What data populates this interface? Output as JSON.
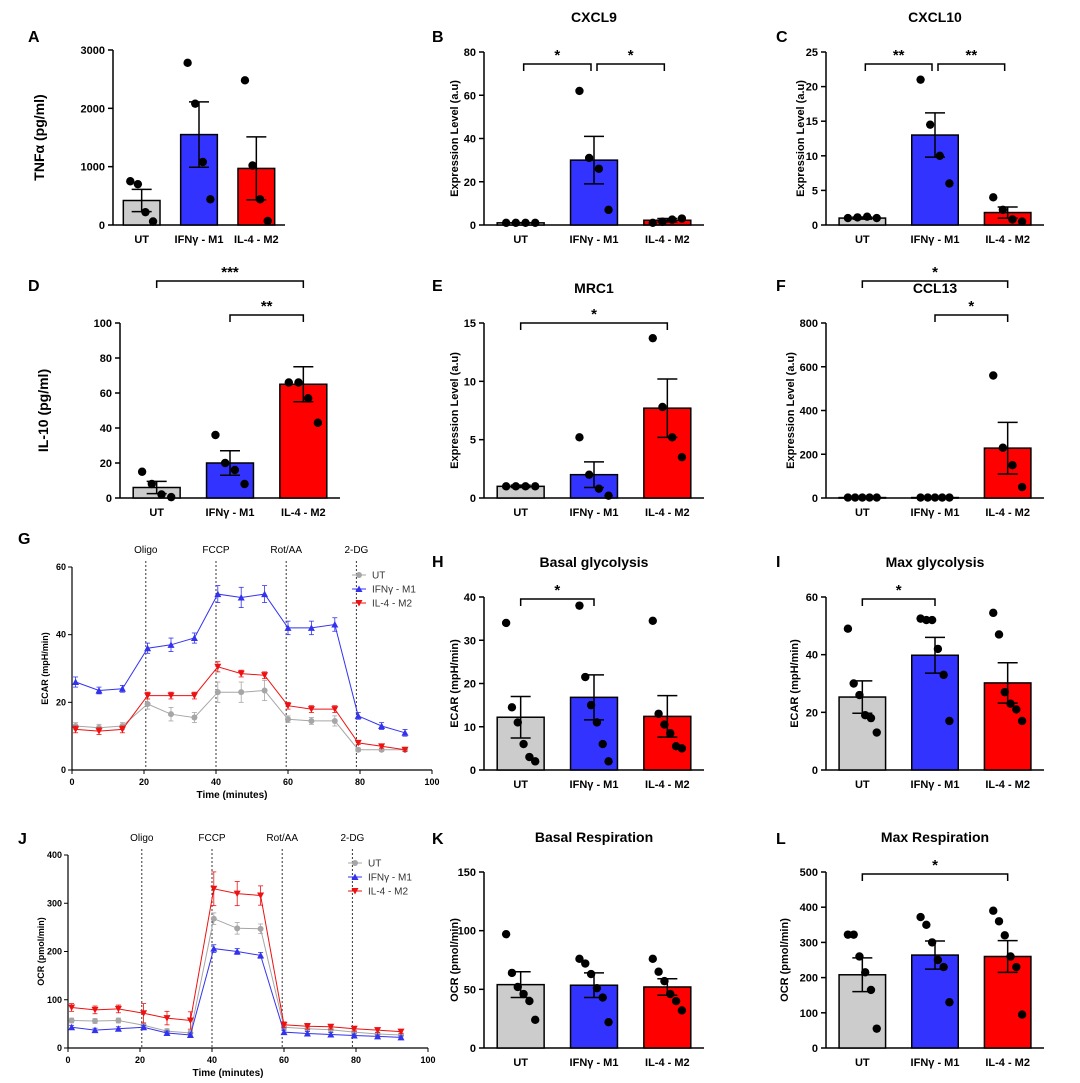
{
  "colors": {
    "UT": "#cccccc",
    "M1": "#3333ff",
    "M2": "#ff0000",
    "point": "#000000",
    "lineUT": "#a6a6a6",
    "lineM1": "#3333ee",
    "lineM2": "#ee1111"
  },
  "groups": [
    "UT",
    "IFNγ - M1",
    "IL-4 - M2"
  ],
  "chart_data": [
    {
      "id": "A",
      "type": "bar",
      "panel_letter": "A",
      "title": "",
      "ylabel": "TNFα (pg/ml)",
      "ylim": [
        0,
        3000
      ],
      "yticks": [
        0,
        1000,
        2000,
        3000
      ],
      "categories": [
        "UT",
        "IFNγ - M1",
        "IL-4 - M2"
      ],
      "values": [
        420,
        1550,
        970
      ],
      "errors": [
        190,
        560,
        540
      ],
      "points": [
        [
          750,
          700,
          220,
          60
        ],
        [
          2780,
          2080,
          1080,
          440
        ],
        [
          2480,
          1020,
          440,
          70
        ]
      ],
      "significance": []
    },
    {
      "id": "B",
      "type": "bar",
      "panel_letter": "B",
      "title": "CXCL9",
      "ylabel": "Expression Level (a.u)",
      "ylim": [
        0,
        80
      ],
      "yticks": [
        0,
        20,
        40,
        60,
        80
      ],
      "categories": [
        "UT",
        "IFNγ - M1",
        "IL-4 - M2"
      ],
      "values": [
        1,
        30,
        2.2
      ],
      "errors": [
        0.1,
        11,
        0.8
      ],
      "points": [
        [
          1,
          1,
          1,
          1
        ],
        [
          62,
          31,
          26,
          7
        ],
        [
          1,
          1.5,
          2.5,
          3
        ]
      ],
      "significance": [
        {
          "from": 0,
          "to": 1,
          "label": "*",
          "level": 1
        },
        {
          "from": 1,
          "to": 2,
          "label": "*",
          "level": 1
        }
      ]
    },
    {
      "id": "C",
      "type": "bar",
      "panel_letter": "C",
      "title": "CXCL10",
      "ylabel": "Expression Level (a.u)",
      "ylim": [
        0,
        25
      ],
      "yticks": [
        0,
        5,
        10,
        15,
        20,
        25
      ],
      "categories": [
        "UT",
        "IFNγ - M1",
        "IL-4 - M2"
      ],
      "values": [
        1,
        13,
        1.8
      ],
      "errors": [
        0.15,
        3.2,
        0.8
      ],
      "points": [
        [
          1,
          1.1,
          1.2,
          1
        ],
        [
          21,
          14.5,
          10,
          6
        ],
        [
          4,
          2.2,
          0.8,
          0.5
        ]
      ],
      "significance": [
        {
          "from": 0,
          "to": 1,
          "label": "**",
          "level": 1
        },
        {
          "from": 1,
          "to": 2,
          "label": "**",
          "level": 1
        }
      ]
    },
    {
      "id": "D",
      "type": "bar",
      "panel_letter": "D",
      "title": "",
      "ylabel": "IL-10 (pg/ml)",
      "ylim": [
        0,
        100
      ],
      "yticks": [
        0,
        20,
        40,
        60,
        80,
        100
      ],
      "categories": [
        "UT",
        "IFNγ - M1",
        "IL-4 - M2"
      ],
      "values": [
        6,
        20,
        65
      ],
      "errors": [
        3.5,
        7,
        10
      ],
      "points": [
        [
          15,
          8,
          2,
          0.5
        ],
        [
          36,
          20,
          16,
          8
        ],
        [
          66,
          66,
          57,
          43
        ]
      ],
      "significance": [
        {
          "from": 1,
          "to": 2,
          "label": "**",
          "level": 1
        },
        {
          "from": 0,
          "to": 2,
          "label": "***",
          "level": 2
        }
      ]
    },
    {
      "id": "E",
      "type": "bar",
      "panel_letter": "E",
      "title": "MRC1",
      "ylabel": "Expression Level (a.u)",
      "ylim": [
        0,
        15
      ],
      "yticks": [
        0,
        5,
        10,
        15
      ],
      "categories": [
        "UT",
        "IFNγ - M1",
        "IL-4 - M2"
      ],
      "values": [
        1,
        2,
        7.7
      ],
      "errors": [
        0.1,
        1.1,
        2.5
      ],
      "points": [
        [
          1,
          1,
          1,
          1
        ],
        [
          5.2,
          2,
          0.8,
          0.2
        ],
        [
          13.7,
          7.8,
          5.2,
          3.5
        ]
      ],
      "significance": [
        {
          "from": 0,
          "to": 2,
          "label": "*",
          "level": 1
        }
      ]
    },
    {
      "id": "F",
      "type": "bar",
      "panel_letter": "F",
      "title": "CCL13",
      "ylabel": "Expression Level (a.u)",
      "ylim": [
        0,
        800
      ],
      "yticks": [
        0,
        200,
        400,
        600,
        800
      ],
      "categories": [
        "UT",
        "IFNγ - M1",
        "IL-4 - M2"
      ],
      "values": [
        2,
        2,
        228
      ],
      "errors": [
        1,
        1,
        118
      ],
      "points": [
        [
          2,
          2,
          2,
          2,
          2
        ],
        [
          2,
          2,
          2,
          2,
          2
        ],
        [
          560,
          230,
          150,
          50
        ]
      ],
      "significance": [
        {
          "from": 1,
          "to": 2,
          "label": "*",
          "level": 1
        },
        {
          "from": 0,
          "to": 2,
          "label": "*",
          "level": 2
        }
      ]
    },
    {
      "id": "G",
      "type": "line",
      "panel_letter": "G",
      "title": "",
      "xlabel": "Time (minutes)",
      "ylabel": "ECAR (mpH/min)",
      "xlim": [
        0,
        100
      ],
      "ylim": [
        0,
        60
      ],
      "xticks": [
        0,
        20,
        40,
        60,
        80,
        100
      ],
      "yticks": [
        0,
        20,
        40,
        60
      ],
      "x": [
        1,
        7.5,
        14,
        21,
        27.5,
        34,
        40.5,
        47,
        53.5,
        60,
        66.5,
        73,
        79.5,
        86,
        92.5
      ],
      "injections": [
        {
          "x": 20.5,
          "label": "Oligo"
        },
        {
          "x": 40,
          "label": "FCCP"
        },
        {
          "x": 59.5,
          "label": "Rot/AA"
        },
        {
          "x": 79,
          "label": "2-DG"
        }
      ],
      "series": [
        {
          "name": "UT",
          "values": [
            13,
            12.5,
            13,
            19.5,
            16.5,
            15.5,
            23,
            23,
            23.5,
            15,
            14.5,
            14.5,
            6,
            6,
            6
          ],
          "errors": [
            1,
            1,
            1,
            1.5,
            2,
            1.5,
            3,
            3,
            3,
            1,
            1,
            1.5,
            0.5,
            0.5,
            0.5
          ]
        },
        {
          "name": "IFNγ - M1",
          "values": [
            26,
            23.5,
            24,
            36,
            37,
            39,
            52,
            51,
            52,
            42,
            42,
            43,
            16,
            13,
            11
          ],
          "errors": [
            1.5,
            1,
            1,
            1.5,
            2,
            1.5,
            2.5,
            3,
            2.5,
            2,
            2,
            2,
            1,
            1,
            1
          ]
        },
        {
          "name": "IL-4 - M2",
          "values": [
            12,
            11.5,
            12,
            22,
            22,
            22,
            30.5,
            28.5,
            28,
            19,
            18,
            18,
            8,
            7,
            6
          ],
          "errors": [
            1,
            1,
            1,
            1,
            1,
            1,
            1.5,
            1,
            1,
            1,
            1,
            1,
            0.5,
            0.5,
            0.5
          ]
        }
      ]
    },
    {
      "id": "H",
      "type": "bar",
      "panel_letter": "H",
      "title": "Basal glycolysis",
      "ylabel": "ECAR (mpH/min)",
      "ylim": [
        0,
        40
      ],
      "yticks": [
        0,
        10,
        20,
        30,
        40
      ],
      "categories": [
        "UT",
        "IFNγ - M1",
        "IL-4 - M2"
      ],
      "values": [
        12.2,
        16.8,
        12.4
      ],
      "errors": [
        4.8,
        5.2,
        4.8
      ],
      "points": [
        [
          34,
          14.5,
          11,
          6,
          3,
          2
        ],
        [
          38,
          21.5,
          15,
          11,
          6,
          2
        ],
        [
          34.5,
          13,
          10.5,
          8.5,
          5.5,
          5
        ]
      ],
      "significance": [
        {
          "from": 0,
          "to": 1,
          "label": "*",
          "level": 1
        }
      ]
    },
    {
      "id": "I",
      "type": "bar",
      "panel_letter": "I",
      "title": "Max glycolysis",
      "ylabel": "ECAR (mpH/min)",
      "ylim": [
        0,
        60
      ],
      "yticks": [
        0,
        20,
        40,
        60
      ],
      "categories": [
        "UT",
        "IFNγ - M1",
        "IL-4 - M2"
      ],
      "values": [
        25.3,
        39.8,
        30.2
      ],
      "errors": [
        5.6,
        6.2,
        7
      ],
      "points": [
        [
          49,
          30,
          26,
          19,
          18,
          13
        ],
        [
          52.5,
          52,
          52,
          42,
          33,
          17
        ],
        [
          54.5,
          47,
          27,
          23,
          21,
          17
        ]
      ],
      "significance": [
        {
          "from": 0,
          "to": 1,
          "label": "*",
          "level": 1
        }
      ]
    },
    {
      "id": "J",
      "type": "line",
      "panel_letter": "J",
      "title": "",
      "xlabel": "Time (minutes)",
      "ylabel": "OCR (pmol/min)",
      "xlim": [
        0,
        100
      ],
      "ylim": [
        0,
        400
      ],
      "xticks": [
        0,
        20,
        40,
        60,
        80,
        100
      ],
      "yticks": [
        0,
        100,
        200,
        300,
        400
      ],
      "x": [
        1,
        7.5,
        14,
        21,
        27.5,
        34,
        40.5,
        47,
        53.5,
        60,
        66.5,
        73,
        79.5,
        86,
        92.5
      ],
      "injections": [
        {
          "x": 20.5,
          "label": "Oligo"
        },
        {
          "x": 40,
          "label": "FCCP"
        },
        {
          "x": 59.5,
          "label": "Rot/AA"
        },
        {
          "x": 79,
          "label": "2-DG"
        }
      ],
      "series": [
        {
          "name": "UT",
          "values": [
            57,
            56,
            57,
            47,
            35,
            31,
            268,
            248,
            247,
            43,
            40,
            38,
            33,
            29,
            27
          ],
          "errors": [
            5,
            5,
            5,
            5,
            5,
            5,
            12,
            12,
            10,
            5,
            5,
            5,
            4,
            4,
            4
          ]
        },
        {
          "name": "IFNγ - M1",
          "values": [
            43,
            37,
            40,
            43,
            31,
            27,
            206,
            200,
            192,
            33,
            30,
            28,
            26,
            24,
            22
          ],
          "errors": [
            4,
            4,
            4,
            4,
            4,
            4,
            8,
            6,
            6,
            4,
            4,
            4,
            3,
            3,
            3
          ]
        },
        {
          "name": "IL-4 - M2",
          "values": [
            84,
            79,
            81,
            72,
            62,
            57,
            330,
            320,
            316,
            48,
            45,
            44,
            40,
            37,
            34
          ],
          "errors": [
            8,
            8,
            8,
            20,
            14,
            18,
            35,
            25,
            20,
            6,
            6,
            5,
            5,
            5,
            4
          ]
        }
      ]
    },
    {
      "id": "K",
      "type": "bar",
      "panel_letter": "K",
      "title": "Basal Respiration",
      "ylabel": "OCR (pmol/min)",
      "ylim": [
        0,
        150
      ],
      "yticks": [
        0,
        50,
        100,
        150
      ],
      "categories": [
        "UT",
        "IFNγ - M1",
        "IL-4 - M2"
      ],
      "values": [
        54,
        53.5,
        52
      ],
      "errors": [
        11,
        10.5,
        7
      ],
      "points": [
        [
          97,
          64,
          52,
          46,
          40,
          24
        ],
        [
          76,
          72,
          63,
          51,
          43,
          22
        ],
        [
          76,
          65,
          57,
          46,
          40,
          32
        ]
      ],
      "significance": []
    },
    {
      "id": "L",
      "type": "bar",
      "panel_letter": "L",
      "title": "Max Respiration",
      "ylabel": "OCR (pmol/min)",
      "ylim": [
        0,
        500
      ],
      "yticks": [
        0,
        100,
        200,
        300,
        400,
        500
      ],
      "categories": [
        "UT",
        "IFNγ - M1",
        "IL-4 - M2"
      ],
      "values": [
        208,
        264,
        260
      ],
      "errors": [
        48,
        40,
        45
      ],
      "points": [
        [
          322,
          322,
          260,
          215,
          165,
          55
        ],
        [
          372,
          350,
          300,
          250,
          230,
          130
        ],
        [
          390,
          360,
          320,
          260,
          230,
          95
        ]
      ],
      "significance": [
        {
          "from": 0,
          "to": 2,
          "label": "*",
          "level": 1
        }
      ]
    }
  ]
}
